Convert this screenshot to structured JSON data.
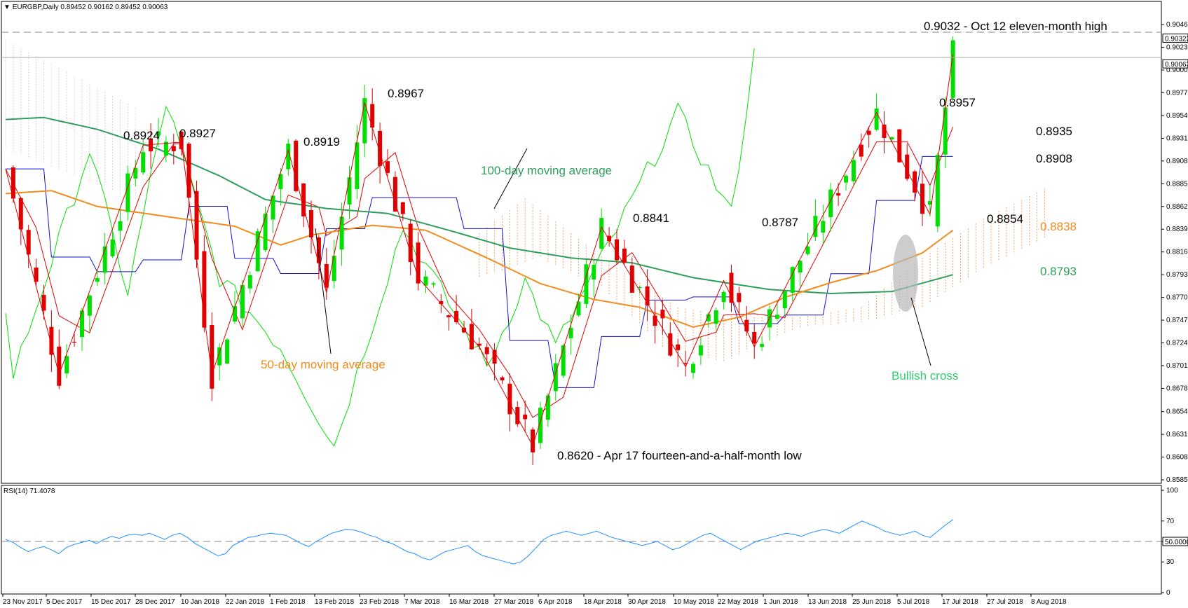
{
  "header": {
    "symbol_line": "EURGBP,Daily  0.89452 0.90162 0.89452 0.90063"
  },
  "indicator": {
    "label": "RSI(14) 71.4078",
    "levels": [
      100,
      70,
      50,
      30,
      0
    ],
    "level50_label": "50.0000"
  },
  "colors": {
    "bull": "#00e000",
    "bear": "#e00000",
    "ma50": "#f28c1c",
    "ma100": "#2e9e5b",
    "kijun": "#1010d0",
    "tenkan": "#e00000",
    "chikou": "#00e000",
    "cloud": "#f4a460",
    "rsi": "#1e90ff",
    "bullish_cross_label": "#2ecc71"
  },
  "chart_data": [
    {
      "type": "candlestick",
      "title": "EURGBP,Daily",
      "y_ticks": [
        "0.90460",
        "0.90230",
        "0.90000",
        "0.89770",
        "0.89540",
        "0.89310",
        "0.89080",
        "0.88850",
        "0.88620",
        "0.88390",
        "0.88160",
        "0.87930",
        "0.87700",
        "0.87470",
        "0.87240",
        "0.87010",
        "0.86780",
        "0.86545",
        "0.86315",
        "0.86085",
        "0.85855"
      ],
      "ylim": [
        0.8582,
        0.9068
      ],
      "price_markers": [
        {
          "label": "0.90323",
          "value": 0.90323
        },
        {
          "label": "0.90063",
          "value": 0.90063
        }
      ],
      "x_ticks": [
        "23 Nov 2017",
        "5 Dec 2017",
        "15 Dec 2017",
        "28 Dec 2017",
        "10 Jan 2018",
        "22 Jan 2018",
        "1 Feb 2018",
        "13 Feb 2018",
        "23 Feb 2018",
        "7 Mar 2018",
        "16 Mar 2018",
        "27 Mar 2018",
        "6 Apr 2018",
        "18 Apr 2018",
        "30 Apr 2018",
        "10 May 2018",
        "22 May 2018",
        "1 Jun 2018",
        "13 Jun 2018",
        "25 Jun 2018",
        "5 Jul 2018",
        "17 Jul 2018",
        "27 Jul 2018",
        "8 Aug 2018"
      ],
      "annotations": [
        {
          "text": "0.9032 - Oct 12 eleven-month high"
        },
        {
          "text": "0.8924"
        },
        {
          "text": "0.8927"
        },
        {
          "text": "0.8919"
        },
        {
          "text": "0.8967"
        },
        {
          "text": "100-day moving average"
        },
        {
          "text": "50-day moving average"
        },
        {
          "text": "0.8841"
        },
        {
          "text": "0.8787"
        },
        {
          "text": "0.8957"
        },
        {
          "text": "0.8935"
        },
        {
          "text": "0.8908"
        },
        {
          "text": "0.8854"
        },
        {
          "text": "0.8838"
        },
        {
          "text": "0.8793"
        },
        {
          "text": "Bullish cross"
        },
        {
          "text": "0.8620 - Apr 17 fourteen-and-a-half-month low"
        }
      ],
      "swing_points": [
        {
          "bar": 0,
          "value": 0.89
        },
        {
          "bar": 7,
          "value": 0.8692
        },
        {
          "bar": 18,
          "value": 0.8924
        },
        {
          "bar": 23,
          "value": 0.8927
        },
        {
          "bar": 27,
          "value": 0.8692
        },
        {
          "bar": 37,
          "value": 0.8919
        },
        {
          "bar": 42,
          "value": 0.8775
        },
        {
          "bar": 47,
          "value": 0.8967
        },
        {
          "bar": 54,
          "value": 0.879
        },
        {
          "bar": 62,
          "value": 0.872
        },
        {
          "bar": 69,
          "value": 0.862
        },
        {
          "bar": 78,
          "value": 0.8841
        },
        {
          "bar": 89,
          "value": 0.87
        },
        {
          "bar": 94,
          "value": 0.8787
        },
        {
          "bar": 98,
          "value": 0.872
        },
        {
          "bar": 114,
          "value": 0.8957
        },
        {
          "bar": 121,
          "value": 0.8854
        },
        {
          "bar": 124,
          "value": 0.9016
        }
      ],
      "ma50_points": [
        {
          "bar": 0,
          "value": 0.8875
        },
        {
          "bar": 6,
          "value": 0.8878
        },
        {
          "bar": 12,
          "value": 0.8862
        },
        {
          "bar": 20,
          "value": 0.8853
        },
        {
          "bar": 30,
          "value": 0.8842
        },
        {
          "bar": 36,
          "value": 0.8823
        },
        {
          "bar": 40,
          "value": 0.8833
        },
        {
          "bar": 48,
          "value": 0.8843
        },
        {
          "bar": 55,
          "value": 0.8838
        },
        {
          "bar": 63,
          "value": 0.881
        },
        {
          "bar": 70,
          "value": 0.8784
        },
        {
          "bar": 77,
          "value": 0.8768
        },
        {
          "bar": 83,
          "value": 0.876
        },
        {
          "bar": 90,
          "value": 0.874
        },
        {
          "bar": 96,
          "value": 0.875
        },
        {
          "bar": 102,
          "value": 0.877
        },
        {
          "bar": 108,
          "value": 0.8785
        },
        {
          "bar": 114,
          "value": 0.8797
        },
        {
          "bar": 120,
          "value": 0.8815
        },
        {
          "bar": 124,
          "value": 0.8838
        }
      ],
      "ma100_points": [
        {
          "bar": 0,
          "value": 0.895
        },
        {
          "bar": 5,
          "value": 0.8952
        },
        {
          "bar": 12,
          "value": 0.894
        },
        {
          "bar": 20,
          "value": 0.892
        },
        {
          "bar": 28,
          "value": 0.8893
        },
        {
          "bar": 34,
          "value": 0.8869
        },
        {
          "bar": 42,
          "value": 0.886
        },
        {
          "bar": 50,
          "value": 0.8855
        },
        {
          "bar": 58,
          "value": 0.8838
        },
        {
          "bar": 66,
          "value": 0.882
        },
        {
          "bar": 74,
          "value": 0.881
        },
        {
          "bar": 82,
          "value": 0.8805
        },
        {
          "bar": 90,
          "value": 0.879
        },
        {
          "bar": 100,
          "value": 0.8778
        },
        {
          "bar": 108,
          "value": 0.8774
        },
        {
          "bar": 116,
          "value": 0.8776
        },
        {
          "bar": 124,
          "value": 0.8793
        }
      ],
      "cloud_points": [
        {
          "bar": 62,
          "value": 0.8835
        },
        {
          "bar": 68,
          "value": 0.887
        },
        {
          "bar": 74,
          "value": 0.8835
        },
        {
          "bar": 80,
          "value": 0.88
        },
        {
          "bar": 88,
          "value": 0.876
        },
        {
          "bar": 96,
          "value": 0.875
        },
        {
          "bar": 104,
          "value": 0.875
        },
        {
          "bar": 112,
          "value": 0.876
        },
        {
          "bar": 120,
          "value": 0.881
        },
        {
          "bar": 128,
          "value": 0.885
        },
        {
          "bar": 136,
          "value": 0.888
        }
      ],
      "cloud_low_points": [
        {
          "bar": 62,
          "value": 0.879
        },
        {
          "bar": 70,
          "value": 0.881
        },
        {
          "bar": 78,
          "value": 0.878
        },
        {
          "bar": 86,
          "value": 0.872
        },
        {
          "bar": 94,
          "value": 0.8705
        },
        {
          "bar": 104,
          "value": 0.874
        },
        {
          "bar": 112,
          "value": 0.8745
        },
        {
          "bar": 120,
          "value": 0.876
        },
        {
          "bar": 128,
          "value": 0.88
        },
        {
          "bar": 136,
          "value": 0.883
        }
      ]
    },
    {
      "type": "line",
      "title": "RSI(14) 71.4078",
      "ylim": [
        0,
        100
      ],
      "values": [
        52,
        49,
        44,
        40,
        43,
        45,
        42,
        38,
        44,
        47,
        49,
        51,
        48,
        52,
        55,
        53,
        56,
        57,
        56,
        58,
        55,
        52,
        56,
        58,
        54,
        48,
        44,
        40,
        36,
        38,
        46,
        50,
        54,
        55,
        57,
        58,
        57,
        56,
        52,
        48,
        45,
        50,
        54,
        58,
        60,
        62,
        61,
        59,
        56,
        54,
        50,
        48,
        44,
        40,
        38,
        34,
        32,
        36,
        40,
        42,
        44,
        46,
        40,
        36,
        34,
        32,
        30,
        28,
        30,
        36,
        44,
        52,
        56,
        58,
        60,
        58,
        56,
        58,
        60,
        57,
        54,
        52,
        50,
        48,
        46,
        48,
        50,
        46,
        42,
        44,
        48,
        52,
        56,
        58,
        54,
        50,
        46,
        42,
        46,
        50,
        52,
        54,
        56,
        58,
        57,
        55,
        58,
        60,
        62,
        60,
        58,
        62,
        66,
        70,
        67,
        64,
        60,
        58,
        56,
        58,
        60,
        56,
        54,
        60,
        66,
        71.4
      ]
    }
  ]
}
